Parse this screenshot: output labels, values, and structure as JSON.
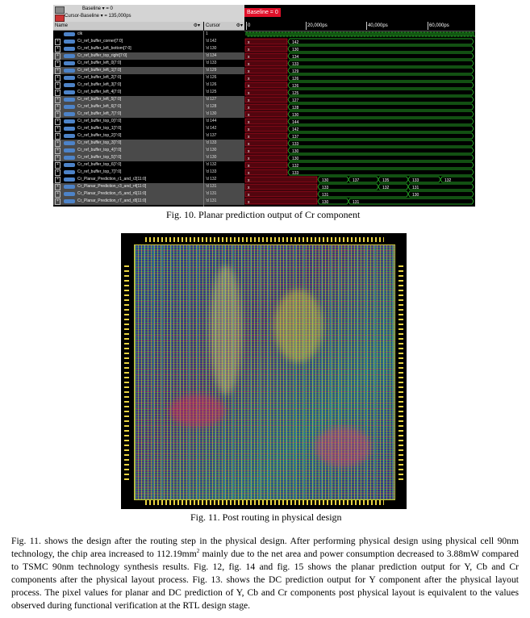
{
  "fig10": {
    "header": {
      "baseline_line": "Baseline ▾ = 0",
      "cursor_line": "Cursor-Baseline ▾ = 135,000ps",
      "baseline_tag": "Baseline = 0",
      "name_col": "Name",
      "cursor_col": "Cursor",
      "col_icons": "⚙▾"
    },
    "ruler": [
      "0",
      "20,000ps",
      "40,000ps",
      "60,000ps"
    ],
    "rows": [
      {
        "name": "clk",
        "cursor": "1",
        "selected": false,
        "plus": false
      },
      {
        "name": "Cr_ref_buffer_corner[7:0]",
        "cursor": "'d 142",
        "selected": false,
        "plus": true
      },
      {
        "name": "Cr_ref_buffer_left_bottom[7:0]",
        "cursor": "'d 130",
        "selected": false,
        "plus": true
      },
      {
        "name": "Cr_ref_buffer_top_right[7:0]",
        "cursor": "'d 134",
        "selected": true,
        "plus": true
      },
      {
        "name": "Cr_ref_buffer_left_0[7:0]",
        "cursor": "'d 133",
        "selected": false,
        "plus": true
      },
      {
        "name": "Cr_ref_buffer_left_1[7:0]",
        "cursor": "'d 129",
        "selected": true,
        "plus": true
      },
      {
        "name": "Cr_ref_buffer_left_2[7:0]",
        "cursor": "'d 126",
        "selected": false,
        "plus": true
      },
      {
        "name": "Cr_ref_buffer_left_3[7:0]",
        "cursor": "'d 126",
        "selected": false,
        "plus": true
      },
      {
        "name": "Cr_ref_buffer_left_4[7:0]",
        "cursor": "'d 125",
        "selected": false,
        "plus": true
      },
      {
        "name": "Cr_ref_buffer_left_5[7:0]",
        "cursor": "'d 127",
        "selected": true,
        "plus": true
      },
      {
        "name": "Cr_ref_buffer_left_6[7:0]",
        "cursor": "'d 128",
        "selected": true,
        "plus": true
      },
      {
        "name": "Cr_ref_buffer_left_7[7:0]",
        "cursor": "'d 130",
        "selected": true,
        "plus": true
      },
      {
        "name": "Cr_ref_buffer_top_0[7:0]",
        "cursor": "'d 144",
        "selected": false,
        "plus": true
      },
      {
        "name": "Cr_ref_buffer_top_1[7:0]",
        "cursor": "'d 142",
        "selected": false,
        "plus": true
      },
      {
        "name": "Cr_ref_buffer_top_2[7:0]",
        "cursor": "'d 137",
        "selected": false,
        "plus": true
      },
      {
        "name": "Cr_ref_buffer_top_3[7:0]",
        "cursor": "'d 133",
        "selected": true,
        "plus": true
      },
      {
        "name": "Cr_ref_buffer_top_4[7:0]",
        "cursor": "'d 130",
        "selected": true,
        "plus": true
      },
      {
        "name": "Cr_ref_buffer_top_5[7:0]",
        "cursor": "'d 130",
        "selected": true,
        "plus": true
      },
      {
        "name": "Cr_ref_buffer_top_6[7:0]",
        "cursor": "'d 132",
        "selected": false,
        "plus": true
      },
      {
        "name": "Cr_ref_buffer_top_7[7:0]",
        "cursor": "'d 133",
        "selected": false,
        "plus": true
      },
      {
        "name": "Cr_Planar_Prediction_r1_and_r2[11:0]",
        "cursor": "'d 132",
        "selected": false,
        "plus": true
      },
      {
        "name": "Cr_Planar_Prediction_r3_and_r4[11:0]",
        "cursor": "'d 131",
        "selected": true,
        "plus": true
      },
      {
        "name": "Cr_Planar_Prediction_r5_and_r6[11:0]",
        "cursor": "'d 131",
        "selected": true,
        "plus": true
      },
      {
        "name": "Cr_Planar_Prediction_r7_and_r8[11:0]",
        "cursor": "'d 131",
        "selected": true,
        "plus": true
      }
    ],
    "bus_values": [
      [
        "142"
      ],
      [
        "130"
      ],
      [
        "134"
      ],
      [
        "133"
      ],
      [
        "129"
      ],
      [
        "126"
      ],
      [
        "126"
      ],
      [
        "125"
      ],
      [
        "127"
      ],
      [
        "128"
      ],
      [
        "130"
      ],
      [
        "144"
      ],
      [
        "142"
      ],
      [
        "137"
      ],
      [
        "133"
      ],
      [
        "130"
      ],
      [
        "130"
      ],
      [
        "132"
      ],
      [
        "133"
      ],
      [
        "130",
        "137",
        "135",
        "133",
        "132"
      ],
      [
        "133",
        "132",
        "131"
      ],
      [
        "131",
        "130"
      ],
      [
        "130",
        "131"
      ]
    ],
    "unknown_marker": "x",
    "colors": {
      "bus": "#2fd62f",
      "unknown": "#e0102a",
      "baseline_tag": "#e0102a"
    },
    "caption": "Fig. 10. Planar prediction output of Cr component"
  },
  "fig11": {
    "caption": "Fig. 11. Post routing in physical design"
  },
  "body": {
    "para_a": "Fig. 11. shows the design after the routing step in the physical design. After performing physical design using physical cell 90nm technology, the chip area increased to 112.19mm",
    "sup": "2",
    "para_b": " mainly due to the net area and power consumption decreased to 3.88mW compared to TSMC 90nm technology synthesis results. Fig. 12, fig. 14 and fig. 15 shows the planar prediction output for Y, Cb and Cr components after the physical layout process. Fig. 13. shows the DC prediction output for Y component after the physical layout process. The pixel values for planar and DC prediction of Y, Cb and Cr components post physical layout is equivalent to the values observed during functional verification at the RTL design stage."
  }
}
